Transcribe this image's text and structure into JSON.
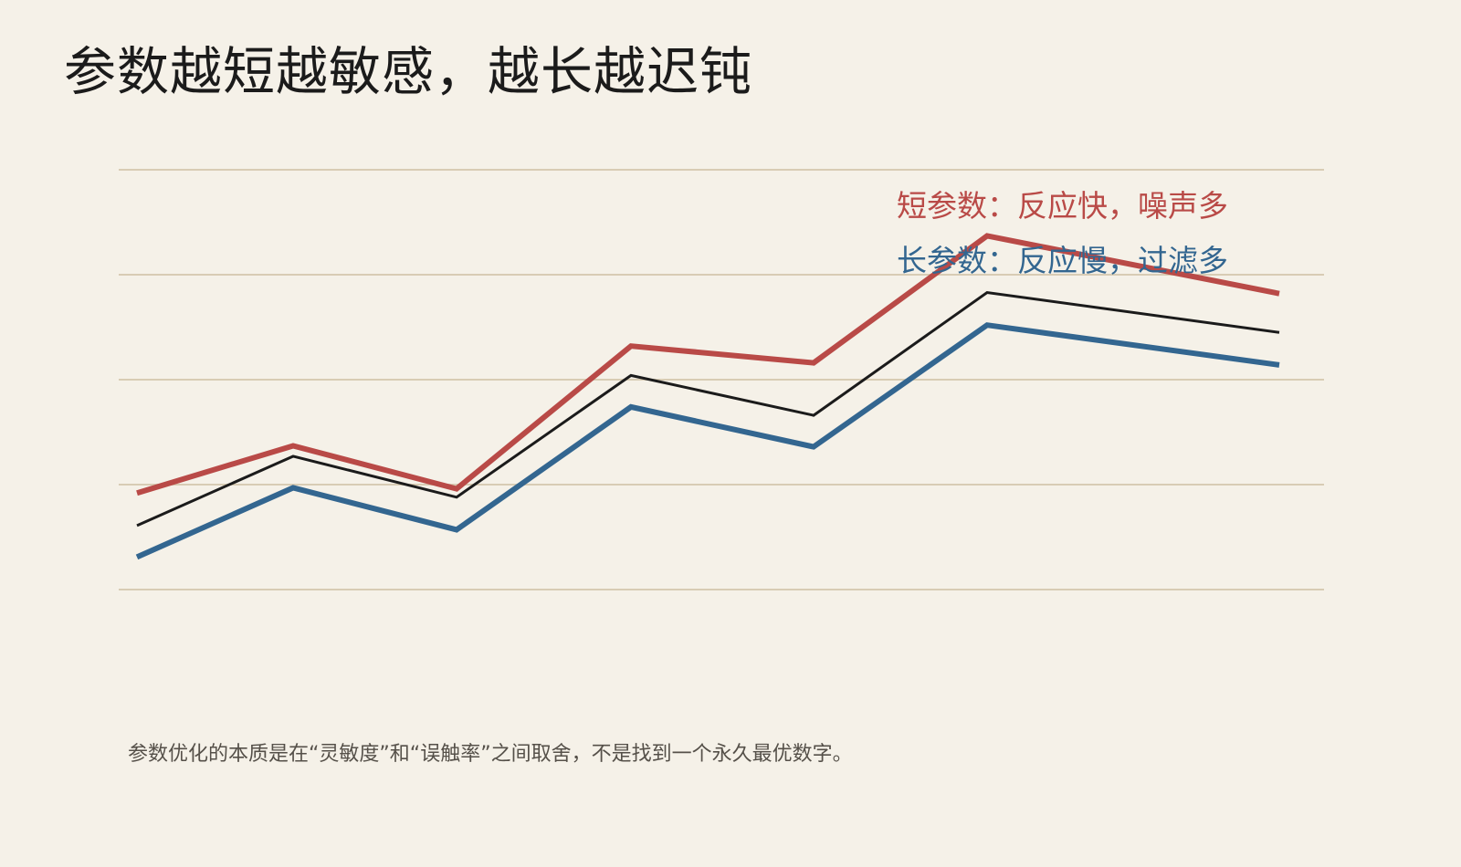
{
  "title": "参数越短越敏感，越长越迟钝",
  "caption": "参数优化的本质是在“灵敏度”和“误触率”之间取舍，不是找到一个永久最优数字。",
  "chart_data": {
    "type": "line",
    "title": "参数越短越敏感，越长越迟钝",
    "xlabel": "",
    "ylabel": "",
    "x": [
      1,
      2,
      3,
      4,
      5,
      6,
      7
    ],
    "ylim": [
      0,
      4
    ],
    "grid": true,
    "legend_placement": "top-right",
    "series": [
      {
        "name": "短参数：反应快，噪声多",
        "color": "#b94a47",
        "values": [
          0.92,
          1.37,
          0.96,
          2.32,
          2.16,
          3.37,
          2.82
        ]
      },
      {
        "name": "",
        "color": "#1b1b1b",
        "values": [
          0.61,
          1.27,
          0.88,
          2.04,
          1.66,
          2.83,
          2.45
        ]
      },
      {
        "name": "长参数：反应慢，过滤多",
        "color": "#336690",
        "values": [
          0.31,
          0.97,
          0.57,
          1.74,
          1.36,
          2.52,
          2.14
        ]
      }
    ]
  }
}
